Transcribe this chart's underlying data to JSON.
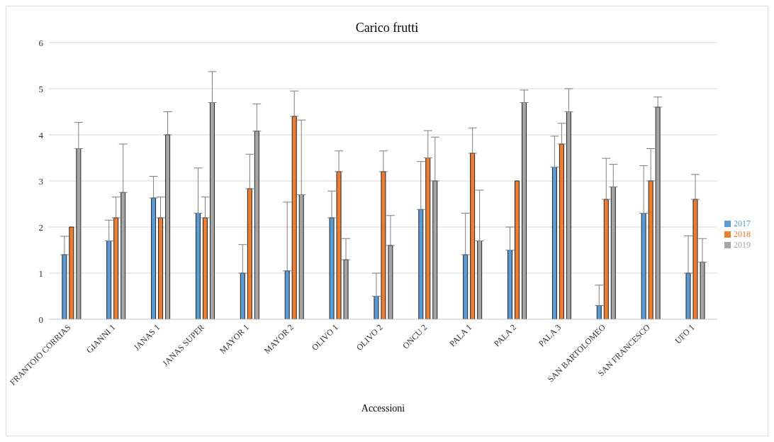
{
  "chart_data": {
    "type": "bar",
    "title": "Carico frutti",
    "xlabel": "Accessioni",
    "categories": [
      "FRANTOIO CORRIAS",
      "GIANNI 1",
      "JANAS 1",
      "JANAS SUPER",
      "MAYOR 1",
      "MAYOR 2",
      "OLIVO 1",
      "OLIVO 2",
      "ONCU 2",
      "PALA 1",
      "PALA 2",
      "PALA 3",
      "SAN BARTOLOMEO",
      "SAN FRANCESCO",
      "UFO 1"
    ],
    "series": [
      {
        "name": "2017",
        "color": "#5b9bd5",
        "values": [
          1.4,
          1.7,
          2.63,
          2.3,
          1.0,
          1.05,
          2.2,
          0.5,
          2.38,
          1.4,
          1.5,
          3.3,
          0.3,
          2.3,
          1.0
        ],
        "errors": [
          [
            1.4,
            1.8
          ],
          [
            1.7,
            2.15
          ],
          [
            2.63,
            3.1
          ],
          [
            2.3,
            3.28
          ],
          [
            1.0,
            1.62
          ],
          [
            1.05,
            2.54
          ],
          [
            2.2,
            2.78
          ],
          [
            0.5,
            1.0
          ],
          [
            2.38,
            3.42
          ],
          [
            1.4,
            2.3
          ],
          [
            1.5,
            2.0
          ],
          [
            3.3,
            3.97
          ],
          [
            0.3,
            0.74
          ],
          [
            2.3,
            3.33
          ],
          [
            1.0,
            1.81
          ]
        ]
      },
      {
        "name": "2018",
        "color": "#ed7d31",
        "values": [
          2.0,
          2.2,
          2.2,
          2.2,
          2.83,
          4.4,
          3.2,
          3.2,
          3.5,
          3.6,
          3.0,
          3.8,
          2.6,
          3.0,
          2.6
        ],
        "errors": [
          null,
          [
            2.2,
            2.65
          ],
          [
            2.2,
            2.65
          ],
          [
            2.2,
            2.65
          ],
          [
            2.83,
            3.58
          ],
          [
            4.4,
            4.95
          ],
          [
            3.2,
            3.65
          ],
          [
            3.2,
            3.65
          ],
          [
            3.5,
            4.09
          ],
          [
            3.6,
            4.15
          ],
          null,
          [
            3.8,
            4.25
          ],
          [
            2.6,
            3.49
          ],
          [
            3.0,
            3.7
          ],
          [
            2.6,
            3.14
          ]
        ]
      },
      {
        "name": "2019",
        "color": "#a5a5a5",
        "values": [
          3.7,
          2.75,
          4.0,
          4.7,
          4.08,
          2.7,
          1.29,
          1.6,
          3.0,
          1.7,
          4.7,
          4.5,
          2.87,
          4.6,
          1.24
        ],
        "errors": [
          [
            3.7,
            4.27
          ],
          [
            2.75,
            3.8
          ],
          [
            4.0,
            4.5
          ],
          [
            4.7,
            5.37
          ],
          [
            4.08,
            4.67
          ],
          [
            2.7,
            4.32
          ],
          [
            1.29,
            1.75
          ],
          [
            1.6,
            2.25
          ],
          [
            3.0,
            3.95
          ],
          [
            1.7,
            2.8
          ],
          [
            4.7,
            4.97
          ],
          [
            4.5,
            5.0
          ],
          [
            2.87,
            3.36
          ],
          [
            4.6,
            4.82
          ],
          [
            1.24,
            1.75
          ]
        ]
      }
    ],
    "ylim": [
      0,
      6
    ],
    "yticks": [
      0,
      1,
      2,
      3,
      4,
      5,
      6
    ],
    "grid": "y",
    "legend": "right"
  }
}
